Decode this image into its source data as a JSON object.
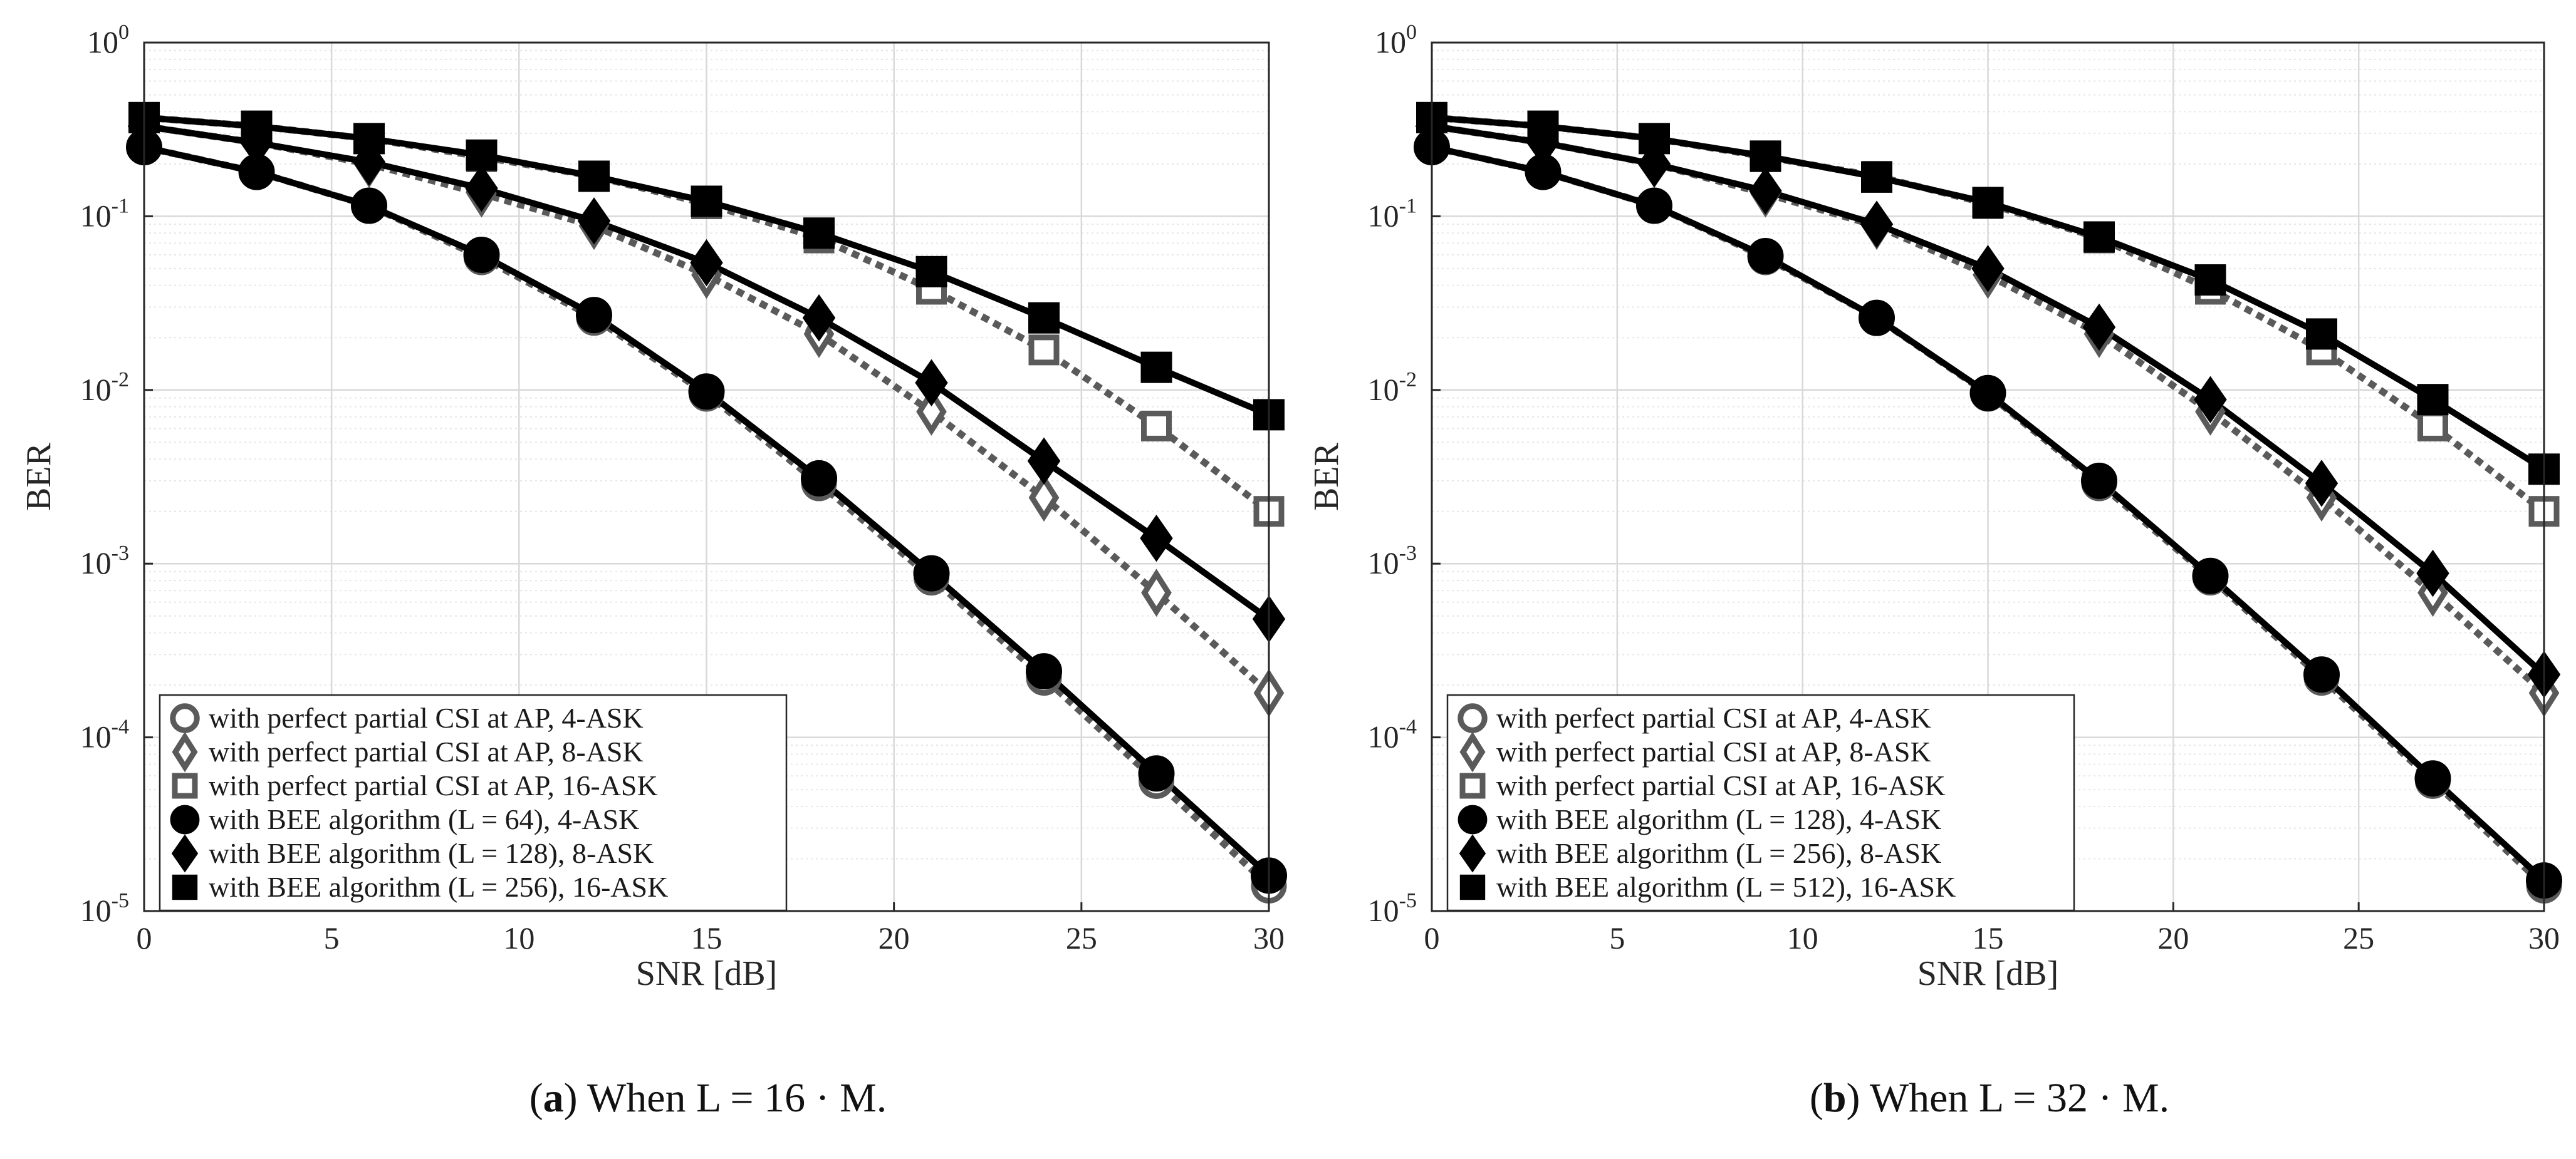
{
  "chart_data": [
    {
      "type": "line",
      "panel_label": "a",
      "caption_text": "When L = 16 · M.",
      "xlabel": "SNR [dB]",
      "ylabel": "BER",
      "yscale": "log",
      "xlim": [
        0,
        30
      ],
      "ylim": [
        1e-05,
        1
      ],
      "x_ticks": [
        "0",
        "5",
        "10",
        "15",
        "20",
        "25",
        "30"
      ],
      "y_ticks": [
        {
          "base": "10",
          "exp": "0"
        },
        {
          "base": "10",
          "exp": "-1"
        },
        {
          "base": "10",
          "exp": "-2"
        },
        {
          "base": "10",
          "exp": "-3"
        },
        {
          "base": "10",
          "exp": "-4"
        },
        {
          "base": "10",
          "exp": "-5"
        }
      ],
      "grid": true,
      "legend_location": "bottom-left",
      "x": [
        0,
        3,
        6,
        9,
        12,
        15,
        18,
        21,
        24,
        27,
        30
      ],
      "series": [
        {
          "name": "with perfect partial CSI at AP, 4-ASK",
          "marker": "circle-open",
          "style": "dotted-gray",
          "values": [
            0.25,
            0.18,
            0.115,
            0.058,
            0.026,
            0.0095,
            0.0029,
            0.00083,
            0.00022,
            5.6e-05,
            1.4e-05
          ]
        },
        {
          "name": "with perfect partial CSI at AP, 8-ASK",
          "marker": "diamond-open",
          "style": "dotted-gray",
          "values": [
            0.33,
            0.265,
            0.2,
            0.135,
            0.088,
            0.046,
            0.021,
            0.0075,
            0.0024,
            0.00068,
            0.00018
          ]
        },
        {
          "name": "with perfect partial CSI at AP, 16-ASK",
          "marker": "square-open",
          "style": "dotted-gray",
          "values": [
            0.37,
            0.33,
            0.28,
            0.22,
            0.17,
            0.118,
            0.075,
            0.038,
            0.017,
            0.0062,
            0.002
          ]
        },
        {
          "name": "with BEE algorithm (L = 64), 4-ASK",
          "marker": "circle-filled",
          "style": "solid-black",
          "values": [
            0.25,
            0.18,
            0.115,
            0.06,
            0.027,
            0.0098,
            0.0031,
            0.00088,
            0.00024,
            6.2e-05,
            1.6e-05
          ]
        },
        {
          "name": "with BEE algorithm (L = 128), 8-ASK",
          "marker": "diamond-filled",
          "style": "solid-black",
          "values": [
            0.33,
            0.265,
            0.205,
            0.145,
            0.094,
            0.054,
            0.026,
            0.011,
            0.0039,
            0.0014,
            0.00048
          ]
        },
        {
          "name": "with BEE algorithm (L = 256), 16-ASK",
          "marker": "square-filled",
          "style": "solid-black",
          "values": [
            0.37,
            0.33,
            0.28,
            0.225,
            0.17,
            0.122,
            0.08,
            0.048,
            0.026,
            0.0135,
            0.0072
          ]
        }
      ]
    },
    {
      "type": "line",
      "panel_label": "b",
      "caption_text": "When L = 32 · M.",
      "xlabel": "SNR [dB]",
      "ylabel": "BER",
      "yscale": "log",
      "xlim": [
        0,
        30
      ],
      "ylim": [
        1e-05,
        1
      ],
      "x_ticks": [
        "0",
        "5",
        "10",
        "15",
        "20",
        "25",
        "30"
      ],
      "y_ticks": [
        {
          "base": "10",
          "exp": "0"
        },
        {
          "base": "10",
          "exp": "-1"
        },
        {
          "base": "10",
          "exp": "-2"
        },
        {
          "base": "10",
          "exp": "-3"
        },
        {
          "base": "10",
          "exp": "-4"
        },
        {
          "base": "10",
          "exp": "-5"
        }
      ],
      "grid": true,
      "legend_location": "bottom-left",
      "x": [
        0,
        3,
        6,
        9,
        12,
        15,
        18,
        21,
        24,
        27,
        30
      ],
      "series": [
        {
          "name": "with perfect partial CSI at AP, 4-ASK",
          "marker": "circle-open",
          "style": "dotted-gray",
          "values": [
            0.25,
            0.18,
            0.115,
            0.058,
            0.026,
            0.0095,
            0.0029,
            0.00083,
            0.00022,
            5.6e-05,
            1.4e-05
          ]
        },
        {
          "name": "with perfect partial CSI at AP, 8-ASK",
          "marker": "diamond-open",
          "style": "dotted-gray",
          "values": [
            0.33,
            0.265,
            0.2,
            0.135,
            0.088,
            0.046,
            0.021,
            0.0075,
            0.0024,
            0.00068,
            0.00018
          ]
        },
        {
          "name": "with perfect partial CSI at AP, 16-ASK",
          "marker": "square-open",
          "style": "dotted-gray",
          "values": [
            0.37,
            0.33,
            0.28,
            0.22,
            0.17,
            0.118,
            0.075,
            0.038,
            0.017,
            0.0062,
            0.002
          ]
        },
        {
          "name": "with BEE algorithm (L = 128), 4-ASK",
          "marker": "circle-filled",
          "style": "solid-black",
          "values": [
            0.25,
            0.18,
            0.115,
            0.059,
            0.026,
            0.0096,
            0.003,
            0.00085,
            0.00023,
            5.8e-05,
            1.5e-05
          ]
        },
        {
          "name": "with BEE algorithm (L = 256), 8-ASK",
          "marker": "diamond-filled",
          "style": "solid-black",
          "values": [
            0.33,
            0.265,
            0.2,
            0.14,
            0.09,
            0.05,
            0.023,
            0.0088,
            0.0029,
            0.00088,
            0.00023
          ]
        },
        {
          "name": "with BEE algorithm (L = 512), 16-ASK",
          "marker": "square-filled",
          "style": "solid-black",
          "values": [
            0.37,
            0.33,
            0.28,
            0.222,
            0.168,
            0.12,
            0.076,
            0.043,
            0.021,
            0.0088,
            0.0035
          ]
        }
      ]
    }
  ],
  "colors": {
    "solid": "#000000",
    "dotted": "#5a5a5a",
    "grid": "#d9d9d9",
    "axis": "#262626"
  }
}
